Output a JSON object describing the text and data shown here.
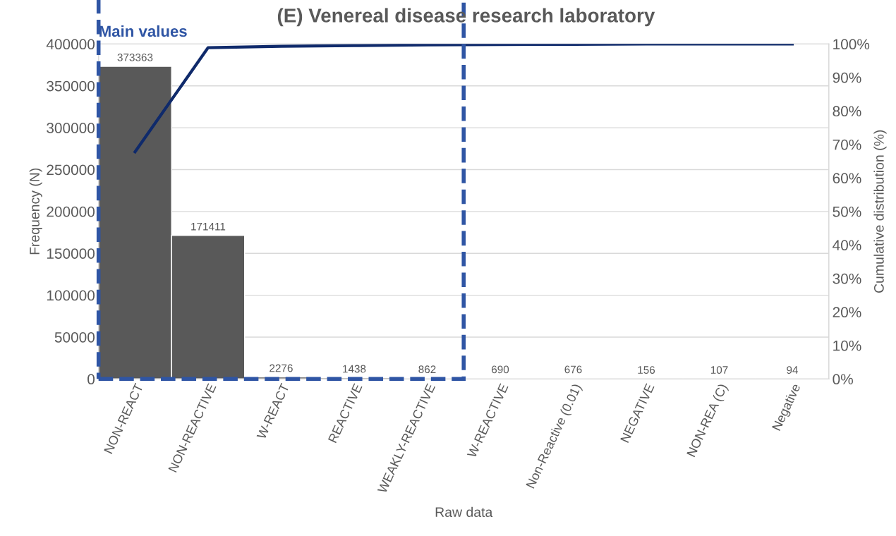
{
  "chart_data": {
    "type": "bar",
    "title": "(E) Venereal disease research laboratory",
    "xlabel": "Raw data",
    "ylabel": "Frequency (N)",
    "y2label": "Cumulative distribution (%)",
    "categories": [
      "NON-REACT",
      "NON-REACTIVE",
      "W-REACT",
      "REACTIVE",
      "WEAKLY-REACTIVE",
      "W-REACTIVE",
      "Non-Reactive (0.01)",
      "NEGATIVE",
      "NON-REA (C)",
      "Negative"
    ],
    "series": [
      {
        "color": "#595959",
        "values": [
          373363,
          171411,
          2276,
          1438,
          862,
          690,
          676,
          156,
          107,
          94
        ],
        "value_labels": [
          "373363",
          "171411",
          "2276",
          "1438",
          "862",
          "690",
          "676",
          "156",
          "107",
          "94"
        ]
      },
      {
        "type": "line",
        "axis": "y2",
        "color": "#0f2a6b",
        "values": [
          67.8,
          98.9,
          99.3,
          99.5,
          99.7,
          99.8,
          99.9,
          100,
          100,
          100
        ]
      }
    ],
    "ylim": [
      0,
      400000
    ],
    "yticks": [
      0,
      50000,
      100000,
      150000,
      200000,
      250000,
      300000,
      350000,
      400000
    ],
    "y2lim": [
      0,
      100
    ],
    "y2ticks": [
      {
        "value": 0,
        "label": "0%"
      },
      {
        "value": 10,
        "label": "10%"
      },
      {
        "value": 20,
        "label": "20%"
      },
      {
        "value": 30,
        "label": "30%"
      },
      {
        "value": 40,
        "label": "40%"
      },
      {
        "value": 50,
        "label": "50%"
      },
      {
        "value": 60,
        "label": "60%"
      },
      {
        "value": 70,
        "label": "70%"
      },
      {
        "value": 80,
        "label": "80%"
      },
      {
        "value": 90,
        "label": "90%"
      },
      {
        "value": 100,
        "label": "100%"
      }
    ],
    "annotations": [
      "Main values"
    ],
    "grid": "y",
    "marker": "none"
  }
}
